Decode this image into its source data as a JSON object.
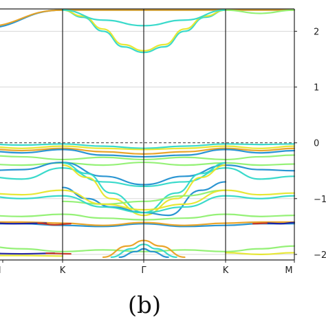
{
  "caption": "(b)",
  "chart_data": {
    "type": "line",
    "title": "",
    "xlabel": "",
    "ylabel": "",
    "x_ticks": [
      "M",
      "K",
      "Γ",
      "K",
      "M"
    ],
    "y_ticks": [
      "2",
      "1",
      "0",
      "−1",
      "−2"
    ],
    "y_tick_values": [
      2,
      1,
      0,
      -1,
      -2
    ],
    "ylim": [
      -2.1,
      2.4
    ],
    "fermi_level": 0,
    "colors": {
      "blue": "#1f8fd0",
      "cyan": "#2fd8c8",
      "green": "#8ff070",
      "yellow": "#e6e62a",
      "orange": "#e8a020",
      "red": "#c83020",
      "navy": "#1a1aa0"
    },
    "series": [
      {
        "color": "blue",
        "x": [
          0,
          1,
          2,
          3,
          4
        ],
        "y": [
          2.05,
          2.38,
          2.38,
          2.38,
          2.38
        ]
      },
      {
        "color": "orange",
        "x": [
          0,
          1,
          2,
          3,
          4
        ],
        "y": [
          2.08,
          2.38,
          2.38,
          2.38,
          2.38
        ]
      },
      {
        "color": "cyan",
        "x": [
          1,
          1.25,
          1.5,
          1.75,
          2,
          2.25,
          2.5,
          2.75,
          3
        ],
        "y": [
          2.38,
          2.25,
          2.0,
          1.72,
          1.62,
          1.72,
          2.0,
          2.25,
          2.38
        ]
      },
      {
        "color": "yellow",
        "x": [
          1,
          1.25,
          1.5,
          1.75,
          2,
          2.25,
          2.5,
          2.75,
          3
        ],
        "y": [
          2.38,
          2.27,
          2.04,
          1.76,
          1.65,
          1.76,
          2.04,
          2.27,
          2.38
        ]
      },
      {
        "color": "cyan",
        "x": [
          1,
          1.5,
          2,
          2.5,
          3
        ],
        "y": [
          2.38,
          2.2,
          2.1,
          2.2,
          2.38
        ]
      },
      {
        "color": "green",
        "x": [
          3,
          3.5,
          4
        ],
        "y": [
          2.38,
          2.32,
          2.38
        ]
      },
      {
        "color": "cyan",
        "x": [
          0,
          0.5,
          1,
          1.5,
          2,
          2.5,
          3,
          3.5,
          4
        ],
        "y": [
          -0.02,
          -0.04,
          -0.02,
          -0.06,
          -0.1,
          -0.06,
          -0.02,
          -0.03,
          -0.02
        ]
      },
      {
        "color": "yellow",
        "x": [
          0,
          0.5,
          1,
          1.5,
          2,
          2.5,
          3,
          3.5,
          4
        ],
        "y": [
          -0.06,
          -0.1,
          -0.06,
          -0.1,
          -0.12,
          -0.1,
          -0.06,
          -0.1,
          -0.06
        ]
      },
      {
        "color": "orange",
        "x": [
          0,
          0.5,
          1,
          1.5,
          2,
          2.5,
          3,
          3.5,
          4
        ],
        "y": [
          -0.1,
          -0.14,
          -0.1,
          -0.16,
          -0.2,
          -0.16,
          -0.1,
          -0.14,
          -0.1
        ]
      },
      {
        "color": "blue",
        "x": [
          0,
          0.5,
          1,
          1.5,
          2,
          2.5,
          3,
          3.5,
          4
        ],
        "y": [
          -0.14,
          -0.18,
          -0.12,
          -0.22,
          -0.25,
          -0.22,
          -0.12,
          -0.18,
          -0.14
        ]
      },
      {
        "color": "green",
        "x": [
          0,
          0.5,
          1,
          1.5,
          2,
          2.5,
          3,
          3.5,
          4
        ],
        "y": [
          -0.22,
          -0.25,
          -0.3,
          -0.26,
          -0.3,
          -0.26,
          -0.3,
          -0.25,
          -0.22
        ]
      },
      {
        "color": "green",
        "x": [
          0,
          0.5,
          1,
          1.5,
          2,
          2.5,
          3,
          3.5,
          4
        ],
        "y": [
          -0.38,
          -0.4,
          -0.36,
          -0.4,
          -0.35,
          -0.4,
          -0.36,
          -0.4,
          -0.38
        ]
      },
      {
        "color": "blue",
        "x": [
          0,
          0.5,
          1,
          1.5,
          2,
          2.5,
          3,
          3.5,
          4
        ],
        "y": [
          -0.5,
          -0.48,
          -0.35,
          -0.6,
          -0.75,
          -0.6,
          -0.4,
          -0.48,
          -0.5
        ]
      },
      {
        "color": "cyan",
        "x": [
          0,
          0.5,
          1,
          1.5,
          2,
          2.5,
          3,
          3.5,
          4
        ],
        "y": [
          -0.6,
          -0.65,
          -0.45,
          -0.7,
          -0.78,
          -0.7,
          -0.45,
          -0.65,
          -0.6
        ]
      },
      {
        "color": "cyan",
        "x": [
          1,
          1.3,
          1.6,
          2,
          2.4,
          2.7,
          3
        ],
        "y": [
          -0.36,
          -0.55,
          -0.9,
          -1.25,
          -0.9,
          -0.55,
          -0.36
        ]
      },
      {
        "color": "yellow",
        "x": [
          1,
          1.3,
          1.6,
          2,
          2.4,
          2.7,
          3
        ],
        "y": [
          -0.4,
          -0.62,
          -1.0,
          -1.3,
          -1.0,
          -0.62,
          -0.4
        ]
      },
      {
        "color": "blue",
        "x": [
          1,
          1.3,
          1.6,
          2,
          2.3,
          2.7,
          3
        ],
        "y": [
          -0.8,
          -1.0,
          -1.15,
          -1.25,
          -1.3,
          -0.85,
          -0.7
        ]
      },
      {
        "color": "green",
        "x": [
          1,
          1.5,
          2,
          2.5,
          3
        ],
        "y": [
          -1.05,
          -1.1,
          -1.05,
          -0.95,
          -0.85
        ]
      },
      {
        "color": "yellow",
        "x": [
          0,
          0.5,
          1,
          1.5,
          2,
          2.5,
          3,
          3.5,
          4
        ],
        "y": [
          -0.9,
          -0.93,
          -0.85,
          -1.1,
          -1.2,
          -1.1,
          -0.85,
          -0.93,
          -0.9
        ]
      },
      {
        "color": "cyan",
        "x": [
          0,
          0.5,
          1,
          1.5,
          2,
          2.5,
          3,
          3.5,
          4
        ],
        "y": [
          -0.95,
          -1.0,
          -0.95,
          -1.15,
          -1.25,
          -1.15,
          -0.95,
          -1.0,
          -0.95
        ]
      },
      {
        "color": "blue",
        "x": [
          0,
          0.5,
          1,
          1.5,
          2,
          2.5,
          3,
          3.5,
          4
        ],
        "y": [
          -1.45,
          -1.45,
          -1.48,
          -1.5,
          -1.45,
          -1.5,
          -1.48,
          -1.45,
          -1.45
        ]
      },
      {
        "color": "orange",
        "x": [
          0,
          0.5,
          1,
          1.5,
          2,
          2.5,
          3,
          3.5,
          4
        ],
        "y": [
          -1.42,
          -1.42,
          -1.44,
          -1.48,
          -1.43,
          -1.48,
          -1.44,
          -1.42,
          -1.42
        ]
      },
      {
        "color": "navy",
        "x": [
          0,
          0.4,
          0.8
        ],
        "y": [
          -1.43,
          -1.45,
          -1.44
        ]
      },
      {
        "color": "red",
        "x": [
          0.7,
          0.9,
          1.1
        ],
        "y": [
          -1.44,
          -1.47,
          -1.45
        ]
      },
      {
        "color": "navy",
        "x": [
          3.6,
          3.8,
          4.0
        ],
        "y": [
          -1.44,
          -1.45,
          -1.43
        ]
      },
      {
        "color": "red",
        "x": [
          3.4,
          3.6
        ],
        "y": [
          -1.45,
          -1.44
        ]
      },
      {
        "color": "green",
        "x": [
          0,
          0.5,
          1,
          1.5,
          2,
          2.5,
          3,
          3.5,
          4
        ],
        "y": [
          -1.3,
          -1.32,
          -1.28,
          -1.35,
          -1.38,
          -1.35,
          -1.28,
          -1.32,
          -1.3
        ]
      },
      {
        "color": "green",
        "x": [
          0,
          0.5,
          1,
          1.5,
          2,
          2.5,
          3,
          3.5,
          4
        ],
        "y": [
          -1.85,
          -1.9,
          -1.95,
          -1.92,
          -1.95,
          -1.92,
          -1.95,
          -1.9,
          -1.85
        ]
      },
      {
        "color": "navy",
        "x": [
          0,
          0.5,
          0.9
        ],
        "y": [
          -1.98,
          -1.99,
          -1.98
        ]
      },
      {
        "color": "red",
        "x": [
          0.8,
          1.1
        ],
        "y": [
          -1.98,
          -1.99
        ]
      },
      {
        "color": "yellow",
        "x": [
          0,
          0.5,
          1
        ],
        "y": [
          -2.02,
          -2.02,
          -2.03
        ]
      },
      {
        "color": "orange",
        "x": [
          1.5,
          1.8,
          2.0,
          2.2,
          2.5
        ],
        "y": [
          -2.05,
          -1.85,
          -1.75,
          -1.85,
          -2.05
        ]
      },
      {
        "color": "cyan",
        "x": [
          1.6,
          1.85,
          2.0,
          2.15,
          2.4
        ],
        "y": [
          -2.05,
          -1.9,
          -1.82,
          -1.9,
          -2.05
        ]
      },
      {
        "color": "blue",
        "x": [
          1.7,
          1.9,
          2.0,
          2.1,
          2.3
        ],
        "y": [
          -2.05,
          -1.95,
          -1.9,
          -1.95,
          -2.05
        ]
      },
      {
        "color": "yellow",
        "x": [
          3,
          3.5,
          4
        ],
        "y": [
          -1.97,
          -2.0,
          -1.97
        ]
      }
    ]
  }
}
